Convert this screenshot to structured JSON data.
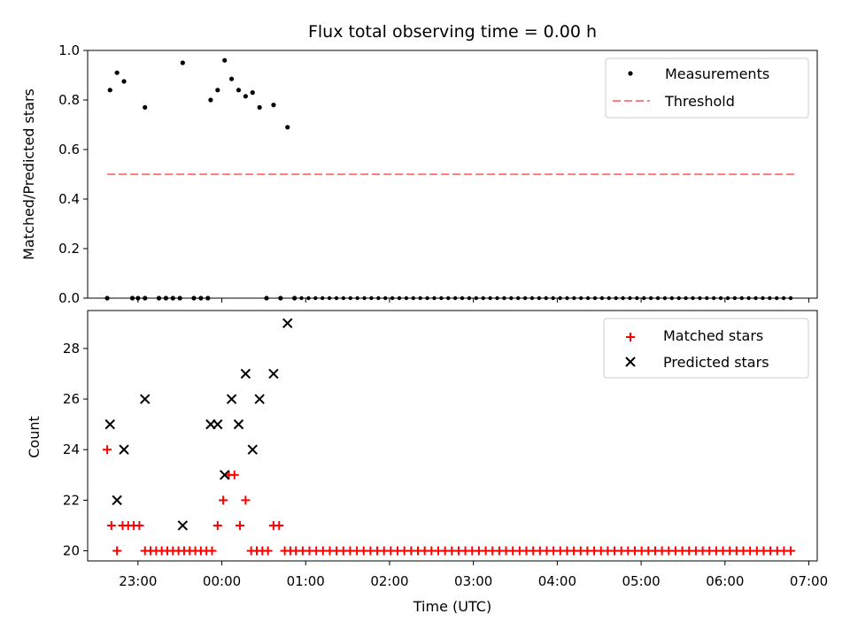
{
  "title": "Flux total observing time = 0.00 h",
  "colors": {
    "measure": "#000000",
    "threshold": "#ff7f7f",
    "matched": "#ff0000",
    "predicted": "#000000"
  },
  "chart_data": [
    {
      "type": "scatter",
      "ylabel": "Matched/Predicted stars",
      "ylim": [
        0,
        1
      ],
      "xlim": [
        "22:24",
        "07:06"
      ],
      "yticks": [
        "0.0",
        "0.2",
        "0.4",
        "0.6",
        "0.8",
        "1.0"
      ],
      "legend_position": "top-right",
      "series": [
        {
          "name": "Measurements",
          "marker": "dot",
          "points": [
            [
              "22:40",
              0.84
            ],
            [
              "22:45",
              0.91
            ],
            [
              "22:50",
              0.875
            ],
            [
              "23:05",
              0.77
            ],
            [
              "23:32",
              0.95
            ],
            [
              "23:52",
              0.8
            ],
            [
              "23:57",
              0.84
            ],
            [
              "00:02",
              0.96
            ],
            [
              "00:07",
              0.885
            ],
            [
              "00:12",
              0.84
            ],
            [
              "00:17",
              0.815
            ],
            [
              "00:22",
              0.83
            ],
            [
              "00:27",
              0.77
            ],
            [
              "00:37",
              0.78
            ],
            [
              "00:47",
              0.69
            ],
            [
              "22:38",
              0
            ],
            [
              "22:56",
              0
            ],
            [
              "23:00",
              0
            ],
            [
              "23:05",
              0
            ],
            [
              "23:15",
              0
            ],
            [
              "23:20",
              0
            ],
            [
              "23:25",
              0
            ],
            [
              "23:30",
              0
            ],
            [
              "23:40",
              0
            ],
            [
              "23:45",
              0
            ],
            [
              "23:50",
              0
            ],
            [
              "00:32",
              0
            ],
            [
              "00:42",
              0
            ],
            [
              "00:52",
              0
            ]
          ]
        },
        {
          "name": "Threshold",
          "style": "dashed",
          "x": [
            "22:38",
            "06:50"
          ],
          "y": [
            0.5,
            0.5
          ]
        }
      ]
    },
    {
      "type": "scatter",
      "ylabel": "Count",
      "xlabel": "Time (UTC)",
      "ylim": [
        19.6,
        29.5
      ],
      "xlim": [
        "22:24",
        "07:06"
      ],
      "yticks": [
        "20",
        "22",
        "24",
        "26",
        "28"
      ],
      "xticks": [
        "23:00",
        "00:00",
        "01:00",
        "02:00",
        "03:00",
        "04:00",
        "05:00",
        "06:00",
        "07:00"
      ],
      "legend_position": "top-right",
      "series": [
        {
          "name": "Matched stars",
          "marker": "plus",
          "points": [
            [
              "22:38",
              24
            ],
            [
              "22:41",
              21
            ],
            [
              "22:45",
              20
            ],
            [
              "22:49",
              21
            ],
            [
              "22:53",
              21
            ],
            [
              "22:57",
              21
            ],
            [
              "23:01",
              21
            ],
            [
              "23:05",
              20
            ],
            [
              "23:09",
              20
            ],
            [
              "23:13",
              20
            ],
            [
              "23:17",
              20
            ],
            [
              "23:21",
              20
            ],
            [
              "23:25",
              20
            ],
            [
              "23:29",
              20
            ],
            [
              "23:33",
              20
            ],
            [
              "23:37",
              20
            ],
            [
              "23:41",
              20
            ],
            [
              "23:45",
              20
            ],
            [
              "23:49",
              20
            ],
            [
              "23:53",
              20
            ],
            [
              "23:57",
              21
            ],
            [
              "00:01",
              22
            ],
            [
              "00:05",
              23
            ],
            [
              "00:09",
              23
            ],
            [
              "00:13",
              21
            ],
            [
              "00:17",
              22
            ],
            [
              "00:21",
              20
            ],
            [
              "00:25",
              20
            ],
            [
              "00:29",
              20
            ],
            [
              "00:33",
              20
            ],
            [
              "00:37",
              21
            ],
            [
              "00:41",
              21
            ],
            [
              "00:45",
              20
            ],
            [
              "00:49",
              20
            ]
          ]
        },
        {
          "name": "Predicted stars",
          "marker": "x",
          "points": [
            [
              "22:40",
              25
            ],
            [
              "22:45",
              22
            ],
            [
              "22:50",
              24
            ],
            [
              "23:05",
              26
            ],
            [
              "23:32",
              21
            ],
            [
              "23:52",
              25
            ],
            [
              "23:57",
              25
            ],
            [
              "00:02",
              23
            ],
            [
              "00:07",
              26
            ],
            [
              "00:12",
              25
            ],
            [
              "00:17",
              27
            ],
            [
              "00:22",
              24
            ],
            [
              "00:27",
              26
            ],
            [
              "00:37",
              27
            ],
            [
              "00:47",
              29
            ]
          ]
        }
      ]
    }
  ]
}
